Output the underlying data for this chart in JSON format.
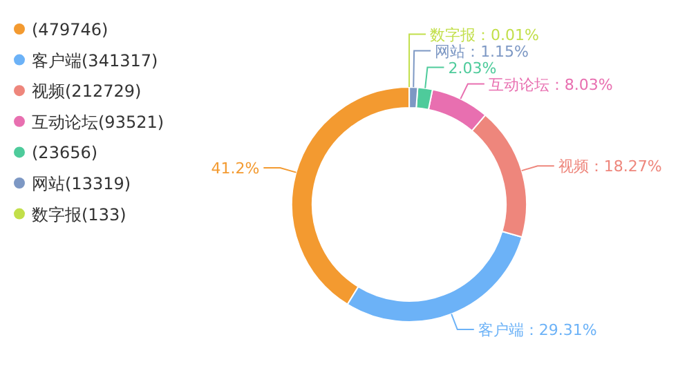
{
  "chart_data": {
    "type": "donut",
    "categories": [
      "(479746)",
      "客户端(341317)",
      "视频(212729)",
      "互动论坛(93521)",
      "(23656)",
      "网站(13319)",
      "数字报(133)"
    ],
    "values": [
      41.2,
      29.31,
      18.27,
      8.03,
      2.03,
      1.15,
      0.01
    ],
    "colors": [
      "#f39a30",
      "#6cb2f7",
      "#ee867c",
      "#e86fb0",
      "#4ecb9b",
      "#7d98c4",
      "#c2df4a"
    ],
    "value_labels": [
      "41.2%",
      "客户端：29.31%",
      "视频：18.27%",
      "互动论坛：8.03%",
      "2.03%",
      "网站：1.15%",
      "数字报：0.01%"
    ],
    "legend": "left"
  }
}
